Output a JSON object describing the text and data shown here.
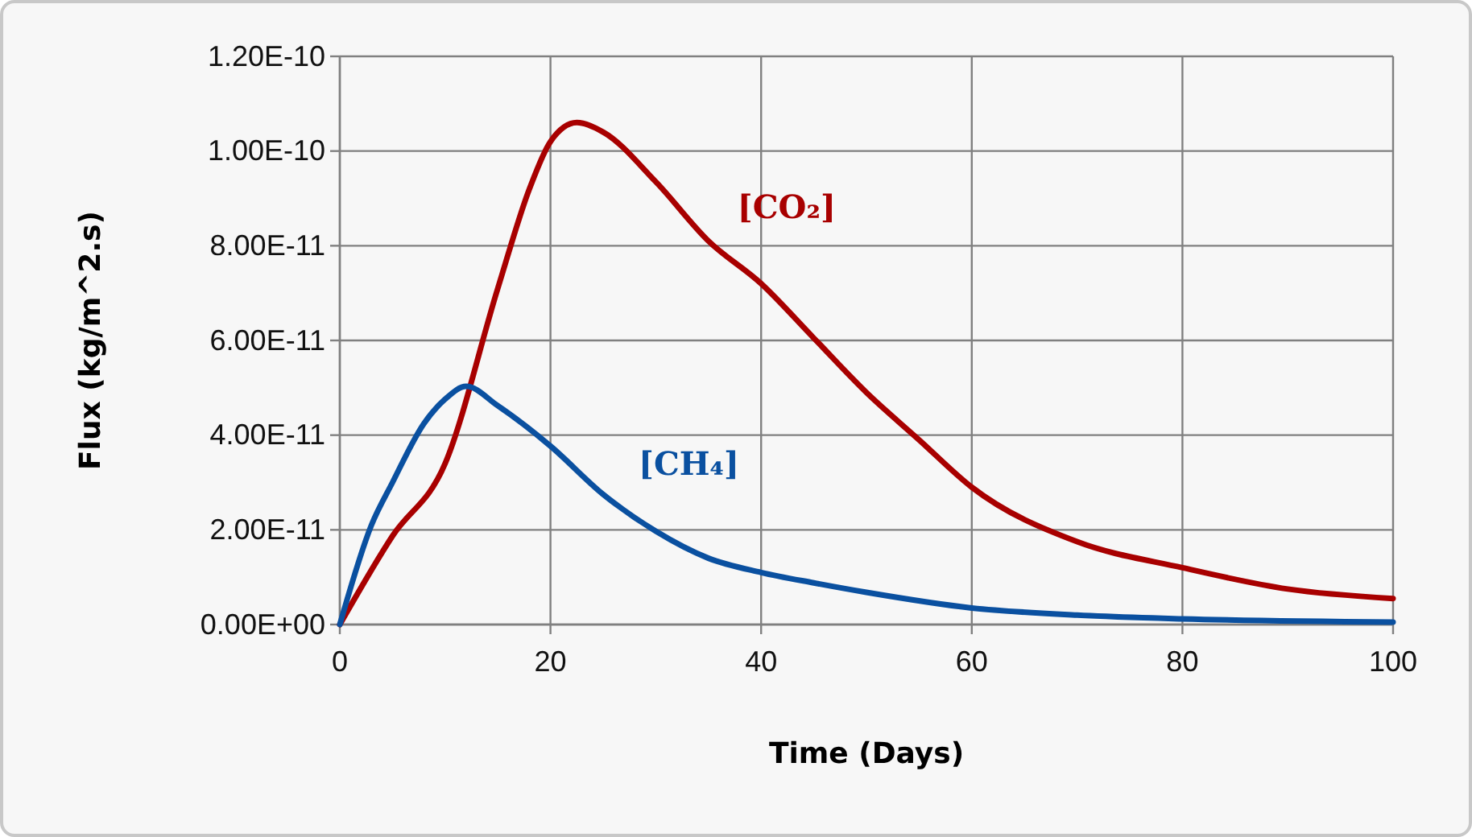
{
  "chart_data": {
    "type": "line",
    "xlabel": "Time (Days)",
    "ylabel": "Flux (kg/m^2.s)",
    "xlim": [
      0,
      100
    ],
    "xticks": [
      0,
      20,
      40,
      60,
      80,
      100
    ],
    "ylim": [
      0,
      1.2e-10
    ],
    "yticks": [
      {
        "value": 0,
        "label": "0.00E+00"
      },
      {
        "value": 2e-11,
        "label": "2.00E-11"
      },
      {
        "value": 4e-11,
        "label": "4.00E-11"
      },
      {
        "value": 6e-11,
        "label": "6.00E-11"
      },
      {
        "value": 8e-11,
        "label": "8.00E-11"
      },
      {
        "value": 1e-10,
        "label": "1.00E-10"
      },
      {
        "value": 1.2e-10,
        "label": "1.20E-10"
      }
    ],
    "grid": true,
    "legend": false,
    "marker": "none",
    "line_style": "solid",
    "series": [
      {
        "name": "[CO₂]",
        "color": "#a80000",
        "x": [
          0,
          5,
          10,
          15,
          18,
          20,
          22.5,
          25,
          30,
          35,
          40,
          45,
          50,
          55,
          60,
          70,
          80,
          90,
          100
        ],
        "values": [
          0,
          1.87e-11,
          3.4e-11,
          7.1e-11,
          9.2e-11,
          1.02e-10,
          1.06e-10,
          1.04e-10,
          9.35e-11,
          8.1e-11,
          7.2e-11,
          6.05e-11,
          4.9e-11,
          3.9e-11,
          2.9e-11,
          1.75e-11,
          1.2e-11,
          7.5e-12,
          5.5e-12
        ]
      },
      {
        "name": "[CH₄]",
        "color": "#0a50a0",
        "x": [
          0,
          3,
          5,
          8,
          10,
          12,
          15,
          20,
          25,
          30,
          35,
          40,
          45,
          50,
          60,
          70,
          80,
          100
        ],
        "values": [
          0,
          2.1e-11,
          3e-11,
          4.25e-11,
          4.76e-11,
          5.03e-11,
          4.62e-11,
          3.77e-11,
          2.75e-11,
          1.97e-11,
          1.4e-11,
          1.1e-11,
          8.8e-12,
          6.8e-12,
          3.5e-12,
          2e-12,
          1.2e-12,
          5e-13
        ]
      }
    ]
  }
}
